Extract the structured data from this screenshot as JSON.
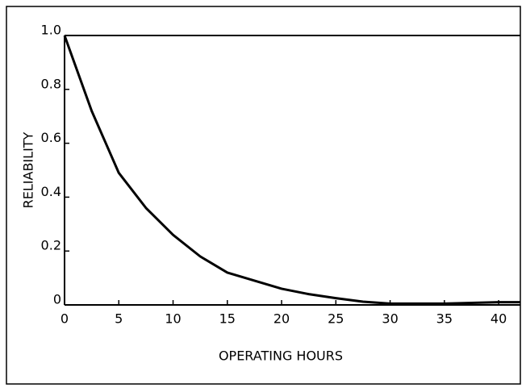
{
  "chart_data": {
    "type": "line",
    "xlabel": "OPERATING HOURS",
    "ylabel": "RELIABILITY",
    "x": [
      0,
      2.5,
      5,
      7.5,
      10,
      12.5,
      15,
      17.5,
      20,
      22.5,
      25,
      27.5,
      30,
      35,
      40,
      42
    ],
    "series": [
      {
        "name": "Reliability",
        "color": "#000000",
        "values": [
          1.0,
          0.72,
          0.49,
          0.36,
          0.26,
          0.18,
          0.12,
          0.09,
          0.06,
          0.04,
          0.025,
          0.012,
          0.005,
          0.005,
          0.01,
          0.01
        ]
      }
    ],
    "xlim": [
      0,
      42
    ],
    "xticks": [
      0,
      5,
      10,
      15,
      20,
      25,
      30,
      35,
      40
    ],
    "ylim": [
      0,
      1
    ],
    "yticks": [
      0,
      0.2,
      0.4,
      0.6,
      0.8,
      {
        "value": 1,
        "label": "1.0"
      }
    ],
    "grid": false
  }
}
